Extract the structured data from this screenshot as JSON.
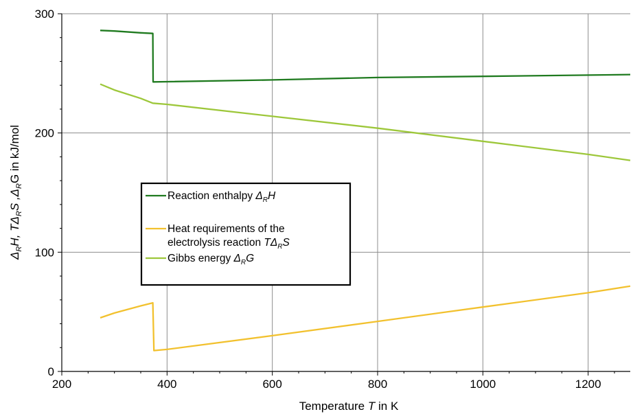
{
  "chart_data": {
    "type": "line",
    "xlabel": {
      "text": "Temperature ",
      "var": "T",
      "unit": " in K"
    },
    "ylabel": {
      "part1": "Δ",
      "sub1": "R",
      "part2": "H, TΔ",
      "sub2": "R",
      "part3": "S ,Δ",
      "sub3": "R",
      "part4": "G in kJ/mol"
    },
    "xlim": [
      200,
      1280
    ],
    "ylim": [
      0,
      300
    ],
    "x_ticks": [
      200,
      400,
      600,
      800,
      1000,
      1200
    ],
    "y_ticks": [
      0,
      100,
      200,
      300
    ],
    "grid": true,
    "legend_position": "center-left",
    "series": [
      {
        "name": "Reaction enthalpy Δ_RH",
        "legend": {
          "text": "Reaction enthalpy  ",
          "sym": "Δ",
          "sub": "R",
          "tail": "H"
        },
        "color": "#1f7a1f",
        "x": [
          273,
          300,
          350,
          373,
          373.5,
          400,
          600,
          800,
          1000,
          1200,
          1280
        ],
        "y": [
          286,
          285.5,
          284,
          283.5,
          242.8,
          243,
          244.5,
          246.5,
          247.5,
          248.5,
          249
        ]
      },
      {
        "name": "Heat requirements of the electrolysis reaction TΔ_RS",
        "legend": {
          "line1": "Heat requirements of the",
          "line2": "electrolysis reaction  ",
          "var": "T",
          "sym": "Δ",
          "sub": "R",
          "tail": "S"
        },
        "color": "#f2c12e",
        "x": [
          273,
          300,
          350,
          373,
          375,
          400,
          600,
          800,
          1000,
          1200,
          1280
        ],
        "y": [
          45,
          49,
          55,
          57.5,
          17.5,
          18.5,
          30,
          42,
          54,
          66,
          71.5
        ]
      },
      {
        "name": "Gibbs energy Δ_RG",
        "legend": {
          "text": "Gibbs energy  ",
          "sym": "Δ",
          "sub": "R",
          "tail": "G"
        },
        "color": "#9dc73a",
        "x": [
          273,
          300,
          350,
          373,
          400,
          600,
          800,
          1000,
          1200,
          1280
        ],
        "y": [
          241,
          236,
          229,
          225,
          224,
          214,
          204,
          193,
          182,
          177
        ]
      }
    ]
  }
}
